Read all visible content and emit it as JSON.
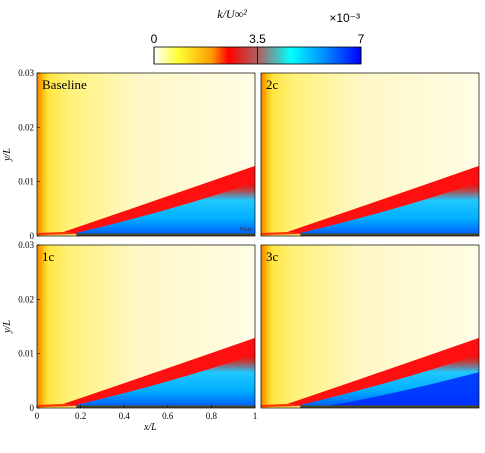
{
  "colorbar": {
    "title": "k/U∞²",
    "multiplier": "×10⁻³",
    "ticks": [
      "0",
      "3.5",
      "7"
    ],
    "tick_values": [
      0,
      3.5,
      7
    ],
    "range": [
      0,
      7
    ],
    "colors": [
      "#ffffff",
      "#ffff00",
      "#ff0000",
      "#808080",
      "#00ffff",
      "#0000ff"
    ]
  },
  "chart_data": {
    "type": "heatmap",
    "quantity": "k/U∞²",
    "colorbar_range": [
      0,
      7
    ],
    "colorbar_multiplier": "×10⁻³",
    "xlabel": "x/L",
    "ylabel": "y/L",
    "xlim": [
      0,
      1
    ],
    "ylim": [
      0,
      0.03
    ],
    "x_ticks": [
      "0",
      "0.2",
      "0.4",
      "0.6",
      "0.8",
      "1"
    ],
    "y_ticks": [
      "0",
      "0.01",
      "0.02",
      "0.03"
    ],
    "panels": [
      {
        "label": "Baseline",
        "annotation": "Plate"
      },
      {
        "label": "2c"
      },
      {
        "label": "1c"
      },
      {
        "label": "3c"
      }
    ]
  }
}
